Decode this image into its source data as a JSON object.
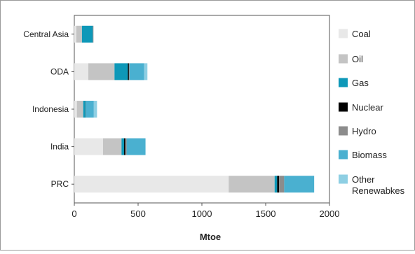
{
  "chart_data": {
    "type": "bar",
    "orientation": "horizontal",
    "stacked": true,
    "title": "",
    "xlabel": "Mtoe",
    "ylabel": "",
    "xlim": [
      0,
      2000
    ],
    "xticks": [
      0,
      500,
      1000,
      1500,
      2000
    ],
    "grid": false,
    "legend_position": "right",
    "categories": [
      "Central Asia",
      "ODA",
      "Indonesia",
      "India",
      "PRC"
    ],
    "series": [
      {
        "name": "Coal",
        "color": "#e8e8e8",
        "values": [
          15,
          110,
          20,
          225,
          1210
        ]
      },
      {
        "name": "Oil",
        "color": "#c4c4c4",
        "values": [
          45,
          205,
          50,
          145,
          360
        ]
      },
      {
        "name": "Gas",
        "color": "#0e98b8",
        "values": [
          85,
          105,
          20,
          20,
          20
        ]
      },
      {
        "name": "Nuclear",
        "color": "#000000",
        "values": [
          0,
          8,
          0,
          10,
          15
        ]
      },
      {
        "name": "Hydro",
        "color": "#8c8c8c",
        "values": [
          5,
          5,
          3,
          10,
          40
        ]
      },
      {
        "name": "Biomass",
        "color": "#4ab0d0",
        "values": [
          0,
          115,
          60,
          145,
          235
        ]
      },
      {
        "name": "Other Renewabkes",
        "label_lines": [
          "Other",
          "Renewabkes"
        ],
        "color": "#8ecfe3",
        "values": [
          0,
          25,
          25,
          5,
          0
        ]
      }
    ]
  }
}
